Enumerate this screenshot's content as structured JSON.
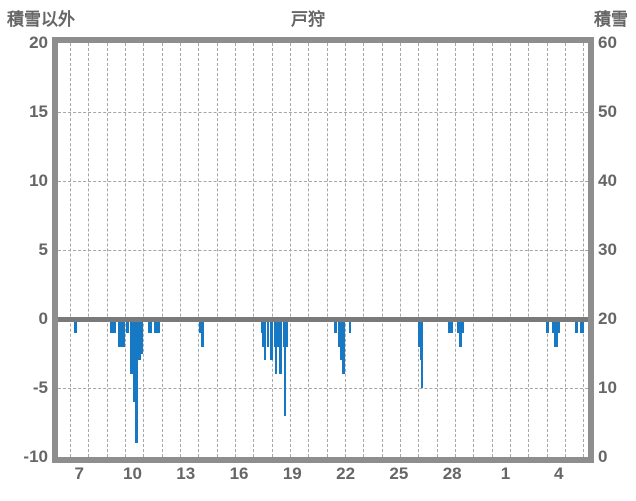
{
  "header": {
    "left_axis_title": "積雪以外",
    "chart_title": "戸狩",
    "right_axis_title": "積雪"
  },
  "chart_data": {
    "type": "bar",
    "title": "戸狩",
    "left_axis": {
      "title": "積雪以外",
      "range": [
        -10,
        20
      ],
      "ticks": [
        20,
        15,
        10,
        5,
        0,
        -5,
        -10
      ],
      "dashed_gridline_ticks": [
        15,
        10,
        5,
        -5
      ]
    },
    "right_axis": {
      "title": "積雪",
      "range": [
        0,
        60
      ],
      "ticks": [
        60,
        50,
        40,
        30,
        20,
        10,
        0
      ]
    },
    "x_axis": {
      "tick_labels": [
        "7",
        "10",
        "13",
        "16",
        "19",
        "22",
        "25",
        "28",
        "1",
        "4"
      ],
      "first_day": 7,
      "gridline_count": 29,
      "gridline_unit": "day"
    },
    "legend_position": "none",
    "grid": true,
    "bar_color": "#1778c4",
    "series": [
      {
        "name": "積雪以外",
        "axis": "left",
        "bars": [
          {
            "d0": 7.22,
            "d1": 7.38,
            "v": -1
          },
          {
            "d0": 9.18,
            "d1": 9.51,
            "v": -1
          },
          {
            "d0": 9.62,
            "d1": 10.0,
            "v": -2
          },
          {
            "d0": 10.05,
            "d1": 10.22,
            "v": -1
          },
          {
            "d0": 10.27,
            "d1": 10.42,
            "v": -4
          },
          {
            "d0": 10.42,
            "d1": 10.53,
            "v": -6
          },
          {
            "d0": 10.53,
            "d1": 10.73,
            "v": -9
          },
          {
            "d0": 10.73,
            "d1": 10.9,
            "v": -3
          },
          {
            "d0": 10.9,
            "d1": 11.0,
            "v": -2.5
          },
          {
            "d0": 11.25,
            "d1": 11.47,
            "v": -1
          },
          {
            "d0": 11.58,
            "d1": 11.9,
            "v": -1
          },
          {
            "d0": 14.04,
            "d1": 14.15,
            "v": -1
          },
          {
            "d0": 14.15,
            "d1": 14.31,
            "v": -2
          },
          {
            "d0": 17.42,
            "d1": 17.5,
            "v": -1
          },
          {
            "d0": 17.5,
            "d1": 17.6,
            "v": -2
          },
          {
            "d0": 17.6,
            "d1": 17.72,
            "v": -3
          },
          {
            "d0": 17.75,
            "d1": 17.86,
            "v": -2
          },
          {
            "d0": 17.9,
            "d1": 18.1,
            "v": -3
          },
          {
            "d0": 18.15,
            "d1": 18.2,
            "v": -2
          },
          {
            "d0": 18.2,
            "d1": 18.27,
            "v": -4
          },
          {
            "d0": 18.27,
            "d1": 18.35,
            "v": -2
          },
          {
            "d0": 18.4,
            "d1": 18.57,
            "v": -4
          },
          {
            "d0": 18.6,
            "d1": 18.68,
            "v": -2
          },
          {
            "d0": 18.68,
            "d1": 18.79,
            "v": -7
          },
          {
            "d0": 18.79,
            "d1": 18.9,
            "v": -2
          },
          {
            "d0": 21.4,
            "d1": 21.55,
            "v": -1
          },
          {
            "d0": 21.6,
            "d1": 21.75,
            "v": -2
          },
          {
            "d0": 21.75,
            "d1": 21.85,
            "v": -3
          },
          {
            "d0": 21.85,
            "d1": 22.0,
            "v": -4
          },
          {
            "d0": 22.2,
            "d1": 22.35,
            "v": -1
          },
          {
            "d0": 25.98,
            "d1": 26.08,
            "v": -2
          },
          {
            "d0": 26.08,
            "d1": 26.16,
            "v": -3
          },
          {
            "d0": 26.16,
            "d1": 26.27,
            "v": -5
          },
          {
            "d0": 27.62,
            "d1": 27.9,
            "v": -1
          },
          {
            "d0": 28.1,
            "d1": 28.22,
            "v": -1
          },
          {
            "d0": 28.22,
            "d1": 28.38,
            "v": -2
          },
          {
            "d0": 28.38,
            "d1": 28.5,
            "v": -1
          },
          {
            "d0": 32.97,
            "d1": 33.12,
            "v": -1
          },
          {
            "d0": 33.28,
            "d1": 33.42,
            "v": -1
          },
          {
            "d0": 33.42,
            "d1": 33.62,
            "v": -2
          },
          {
            "d0": 33.62,
            "d1": 33.7,
            "v": -1
          },
          {
            "d0": 34.55,
            "d1": 34.72,
            "v": -1
          },
          {
            "d0": 34.8,
            "d1": 35.05,
            "v": -1
          }
        ]
      }
    ]
  },
  "colors": {
    "bar": "#1778c4",
    "zero_line": "#7a7a7a",
    "frame": "#8e8e8e",
    "gridline": "#a6a6a6",
    "text": "#666666"
  }
}
